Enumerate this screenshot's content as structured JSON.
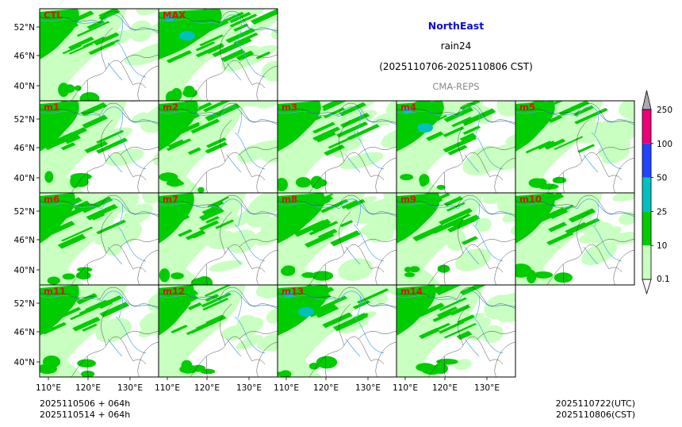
{
  "header": {
    "region": "NorthEast",
    "variable": "rain24",
    "period": "(2025110706-2025110806 CST)",
    "model": "CMA-REPS"
  },
  "colors": {
    "region_title": "#0b0bd6",
    "model_label": "#888888",
    "panel_label": "#e01010",
    "frame": "#000000",
    "river": "#4aa8e8",
    "border": "#333333"
  },
  "axes": {
    "lat_ticks": [
      "52°N",
      "46°N",
      "40°N"
    ],
    "lon_ticks": [
      "110°E",
      "120°E",
      "130°E"
    ]
  },
  "panels": [
    {
      "label": "CTL",
      "row": 0,
      "col": 0,
      "seed": 11,
      "intensity": 1.0
    },
    {
      "label": "MAX",
      "row": 0,
      "col": 1,
      "seed": 23,
      "intensity": 1.6
    },
    {
      "label": "m1",
      "row": 1,
      "col": 0,
      "seed": 31,
      "intensity": 1.0
    },
    {
      "label": "m2",
      "row": 1,
      "col": 1,
      "seed": 37,
      "intensity": 1.0
    },
    {
      "label": "m3",
      "row": 1,
      "col": 2,
      "seed": 41,
      "intensity": 1.1
    },
    {
      "label": "m4",
      "row": 1,
      "col": 3,
      "seed": 43,
      "intensity": 1.2
    },
    {
      "label": "m5",
      "row": 1,
      "col": 4,
      "seed": 47,
      "intensity": 1.0
    },
    {
      "label": "m6",
      "row": 2,
      "col": 0,
      "seed": 53,
      "intensity": 0.9
    },
    {
      "label": "m7",
      "row": 2,
      "col": 1,
      "seed": 59,
      "intensity": 0.9
    },
    {
      "label": "m8",
      "row": 2,
      "col": 2,
      "seed": 61,
      "intensity": 1.2
    },
    {
      "label": "m9",
      "row": 2,
      "col": 3,
      "seed": 67,
      "intensity": 1.1
    },
    {
      "label": "m10",
      "row": 2,
      "col": 4,
      "seed": 71,
      "intensity": 1.0
    },
    {
      "label": "m11",
      "row": 3,
      "col": 0,
      "seed": 73,
      "intensity": 1.0
    },
    {
      "label": "m12",
      "row": 3,
      "col": 1,
      "seed": 79,
      "intensity": 0.9
    },
    {
      "label": "m13",
      "row": 3,
      "col": 2,
      "seed": 83,
      "intensity": 1.3
    },
    {
      "label": "m14",
      "row": 3,
      "col": 3,
      "seed": 89,
      "intensity": 1.0
    }
  ],
  "colorbar": {
    "levels": [
      "0.1",
      "10",
      "25",
      "50",
      "100",
      "250"
    ],
    "colors": [
      "#c9ffc0",
      "#00cc00",
      "#00c0c0",
      "#2244ff",
      "#ee0077",
      "#aaaaaa"
    ],
    "under_color": "#ffffff",
    "over_color": "#aaaaaa"
  },
  "footer": {
    "init_line1": "2025110506  +  064h",
    "init_line2": "2025110514  +  064h",
    "valid_utc": "2025110722(UTC)",
    "valid_cst": "2025110806(CST)"
  }
}
